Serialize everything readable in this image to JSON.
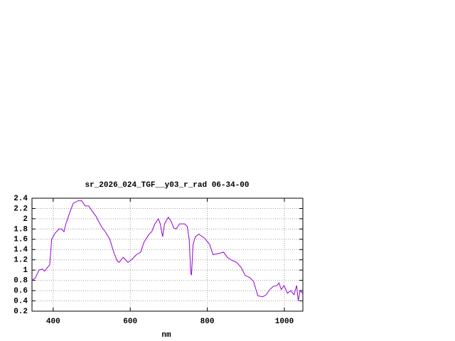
{
  "chart_data": {
    "type": "line",
    "title": "sr_2026_024_TGF__y03_r_rad 06-34-00",
    "x_label": "nm",
    "x": [
      345,
      354,
      363,
      372,
      378,
      385,
      391,
      396,
      405,
      415,
      422,
      428,
      433,
      442,
      452,
      465,
      474,
      483,
      492,
      501,
      511,
      525,
      535,
      547,
      557,
      566,
      571,
      582,
      594,
      603,
      616,
      627,
      636,
      649,
      656,
      664,
      673,
      678,
      684,
      689,
      699,
      706,
      713,
      719,
      728,
      741,
      748,
      753,
      757,
      759,
      763,
      769,
      778,
      793,
      806,
      815,
      833,
      842,
      852,
      861,
      876,
      888,
      898,
      911,
      920,
      931,
      944,
      953,
      962,
      971,
      981,
      986,
      992,
      999,
      1008,
      1017,
      1025,
      1032,
      1036,
      1041,
      1047
    ],
    "series": [
      {
        "color": "#9400d3",
        "values": [
          0.8,
          0.85,
          1.0,
          1.02,
          0.98,
          1.05,
          1.1,
          1.6,
          1.72,
          1.8,
          1.8,
          1.75,
          1.9,
          2.1,
          2.3,
          2.35,
          2.35,
          2.25,
          2.25,
          2.15,
          2.05,
          1.85,
          1.75,
          1.6,
          1.35,
          1.18,
          1.15,
          1.25,
          1.15,
          1.2,
          1.3,
          1.35,
          1.55,
          1.7,
          1.75,
          1.9,
          2.0,
          1.9,
          1.65,
          1.9,
          2.03,
          1.95,
          1.82,
          1.8,
          1.9,
          1.9,
          1.85,
          1.6,
          0.95,
          0.9,
          1.5,
          1.65,
          1.7,
          1.62,
          1.5,
          1.3,
          1.33,
          1.35,
          1.25,
          1.2,
          1.15,
          1.05,
          0.9,
          0.85,
          0.78,
          0.5,
          0.48,
          0.52,
          0.62,
          0.68,
          0.7,
          0.75,
          0.62,
          0.7,
          0.55,
          0.6,
          0.52,
          0.7,
          0.4,
          0.6,
          0.55
        ]
      }
    ],
    "xlim": [
      345,
      1048
    ],
    "xticks": [
      400,
      600,
      800,
      1000
    ],
    "ylim": [
      0.2,
      2.4
    ],
    "yticks": [
      0.2,
      0.4,
      0.6,
      0.8,
      1,
      1.2,
      1.4,
      1.6,
      1.8,
      2,
      2.2,
      2.4
    ],
    "grid": true
  }
}
